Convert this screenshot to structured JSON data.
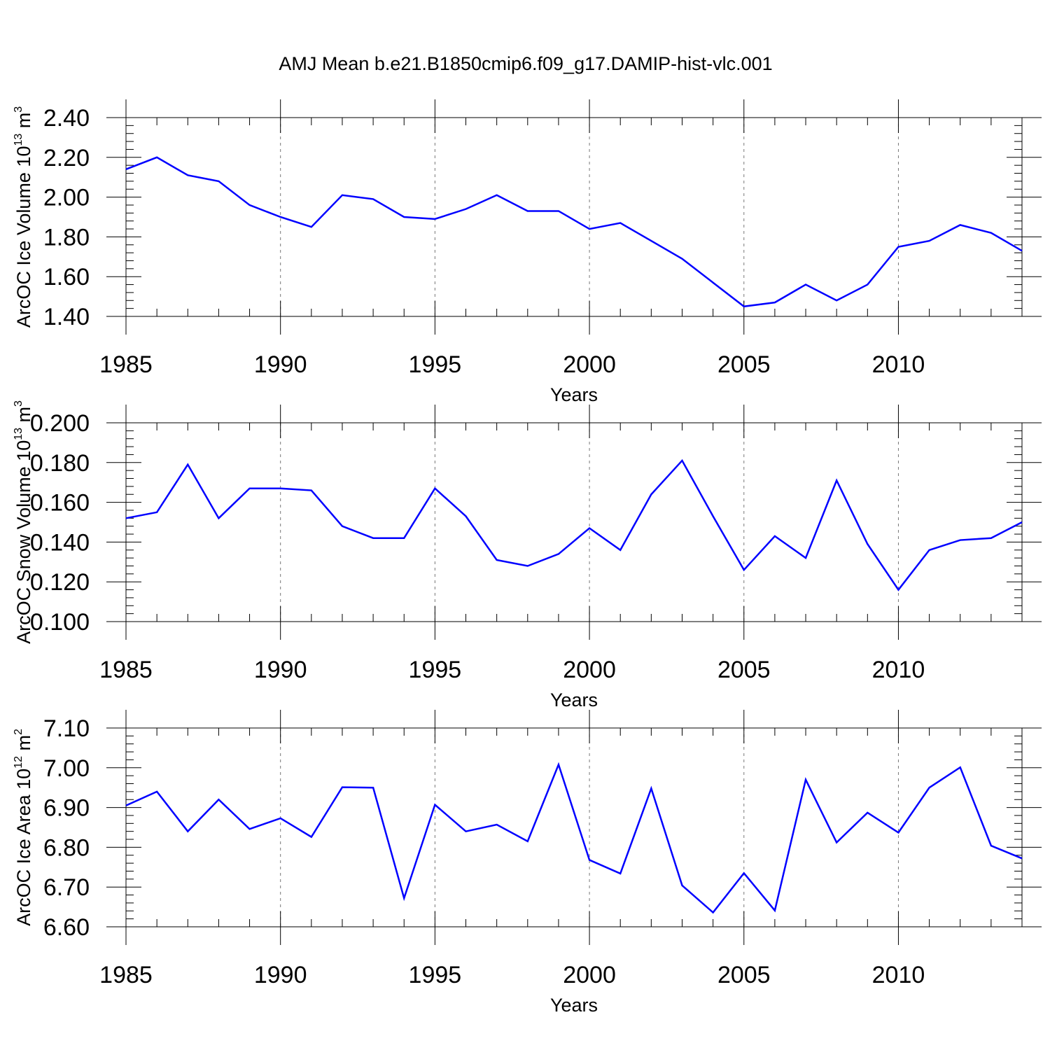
{
  "title": "AMJ Mean b.e21.B1850cmip6.f09_g17.DAMIP-hist-vlc.001",
  "series_color": "#0000ff",
  "chart_data": [
    {
      "type": "line",
      "ylabel": {
        "text": "ArcOC Ice Volume 10",
        "exp": "13",
        "unit": " m",
        "unit_exp": "3"
      },
      "xlabel": "Years",
      "xlim": [
        1985,
        2014
      ],
      "ylim": [
        1.4,
        2.4
      ],
      "x_ticks": [
        1985,
        1990,
        1995,
        2000,
        2005,
        2010
      ],
      "y_ticks": [
        "1.40",
        "1.60",
        "1.80",
        "2.00",
        "2.20",
        "2.40"
      ],
      "grid": "vertical dashed at major x ticks",
      "x": [
        1985,
        1986,
        1987,
        1988,
        1989,
        1990,
        1991,
        1992,
        1993,
        1994,
        1995,
        1996,
        1997,
        1998,
        1999,
        2000,
        2001,
        2002,
        2003,
        2004,
        2005,
        2006,
        2007,
        2008,
        2009,
        2010,
        2011,
        2012,
        2013,
        2014
      ],
      "values": [
        2.14,
        2.2,
        2.11,
        2.08,
        1.96,
        1.9,
        1.85,
        2.01,
        1.99,
        1.9,
        1.89,
        1.94,
        2.01,
        1.93,
        1.93,
        1.84,
        1.87,
        1.78,
        1.69,
        1.57,
        1.45,
        1.47,
        1.56,
        1.48,
        1.56,
        1.75,
        1.78,
        1.86,
        1.82,
        1.73
      ]
    },
    {
      "type": "line",
      "ylabel": {
        "text": "ArcOC Snow Volume 10",
        "exp": "13",
        "unit": " m",
        "unit_exp": "3"
      },
      "xlabel": "Years",
      "xlim": [
        1985,
        2014
      ],
      "ylim": [
        0.1,
        0.2
      ],
      "x_ticks": [
        1985,
        1990,
        1995,
        2000,
        2005,
        2010
      ],
      "y_ticks": [
        "0.100",
        "0.120",
        "0.140",
        "0.160",
        "0.180",
        "0.200"
      ],
      "grid": "vertical dashed at major x ticks",
      "x": [
        1985,
        1986,
        1987,
        1988,
        1989,
        1990,
        1991,
        1992,
        1993,
        1994,
        1995,
        1996,
        1997,
        1998,
        1999,
        2000,
        2001,
        2002,
        2003,
        2004,
        2005,
        2006,
        2007,
        2008,
        2009,
        2010,
        2011,
        2012,
        2013,
        2014
      ],
      "values": [
        0.152,
        0.155,
        0.179,
        0.152,
        0.167,
        0.167,
        0.166,
        0.148,
        0.142,
        0.142,
        0.167,
        0.153,
        0.131,
        0.128,
        0.134,
        0.147,
        0.136,
        0.164,
        0.181,
        0.153,
        0.126,
        0.143,
        0.132,
        0.171,
        0.139,
        0.116,
        0.136,
        0.141,
        0.142,
        0.15
      ]
    },
    {
      "type": "line",
      "ylabel": {
        "text": "ArcOC Ice Area 10",
        "exp": "12",
        "unit": " m",
        "unit_exp": "2"
      },
      "xlabel": "Years",
      "xlim": [
        1985,
        2014
      ],
      "ylim": [
        6.6,
        7.1
      ],
      "x_ticks": [
        1985,
        1990,
        1995,
        2000,
        2005,
        2010
      ],
      "y_ticks": [
        "6.60",
        "6.70",
        "6.80",
        "6.90",
        "7.00",
        "7.10"
      ],
      "grid": "vertical dashed at major x ticks",
      "x": [
        1985,
        1986,
        1987,
        1988,
        1989,
        1990,
        1991,
        1992,
        1993,
        1994,
        1995,
        1996,
        1997,
        1998,
        1999,
        2000,
        2001,
        2002,
        2003,
        2004,
        2005,
        2006,
        2007,
        2008,
        2009,
        2010,
        2011,
        2012,
        2013,
        2014
      ],
      "values": [
        6.905,
        6.94,
        6.84,
        6.92,
        6.846,
        6.873,
        6.826,
        6.951,
        6.95,
        6.672,
        6.907,
        6.84,
        6.857,
        6.815,
        7.008,
        6.768,
        6.734,
        6.948,
        6.704,
        6.636,
        6.735,
        6.641,
        6.97,
        6.812,
        6.887,
        6.837,
        6.95,
        7.001,
        6.804,
        6.772
      ]
    }
  ]
}
